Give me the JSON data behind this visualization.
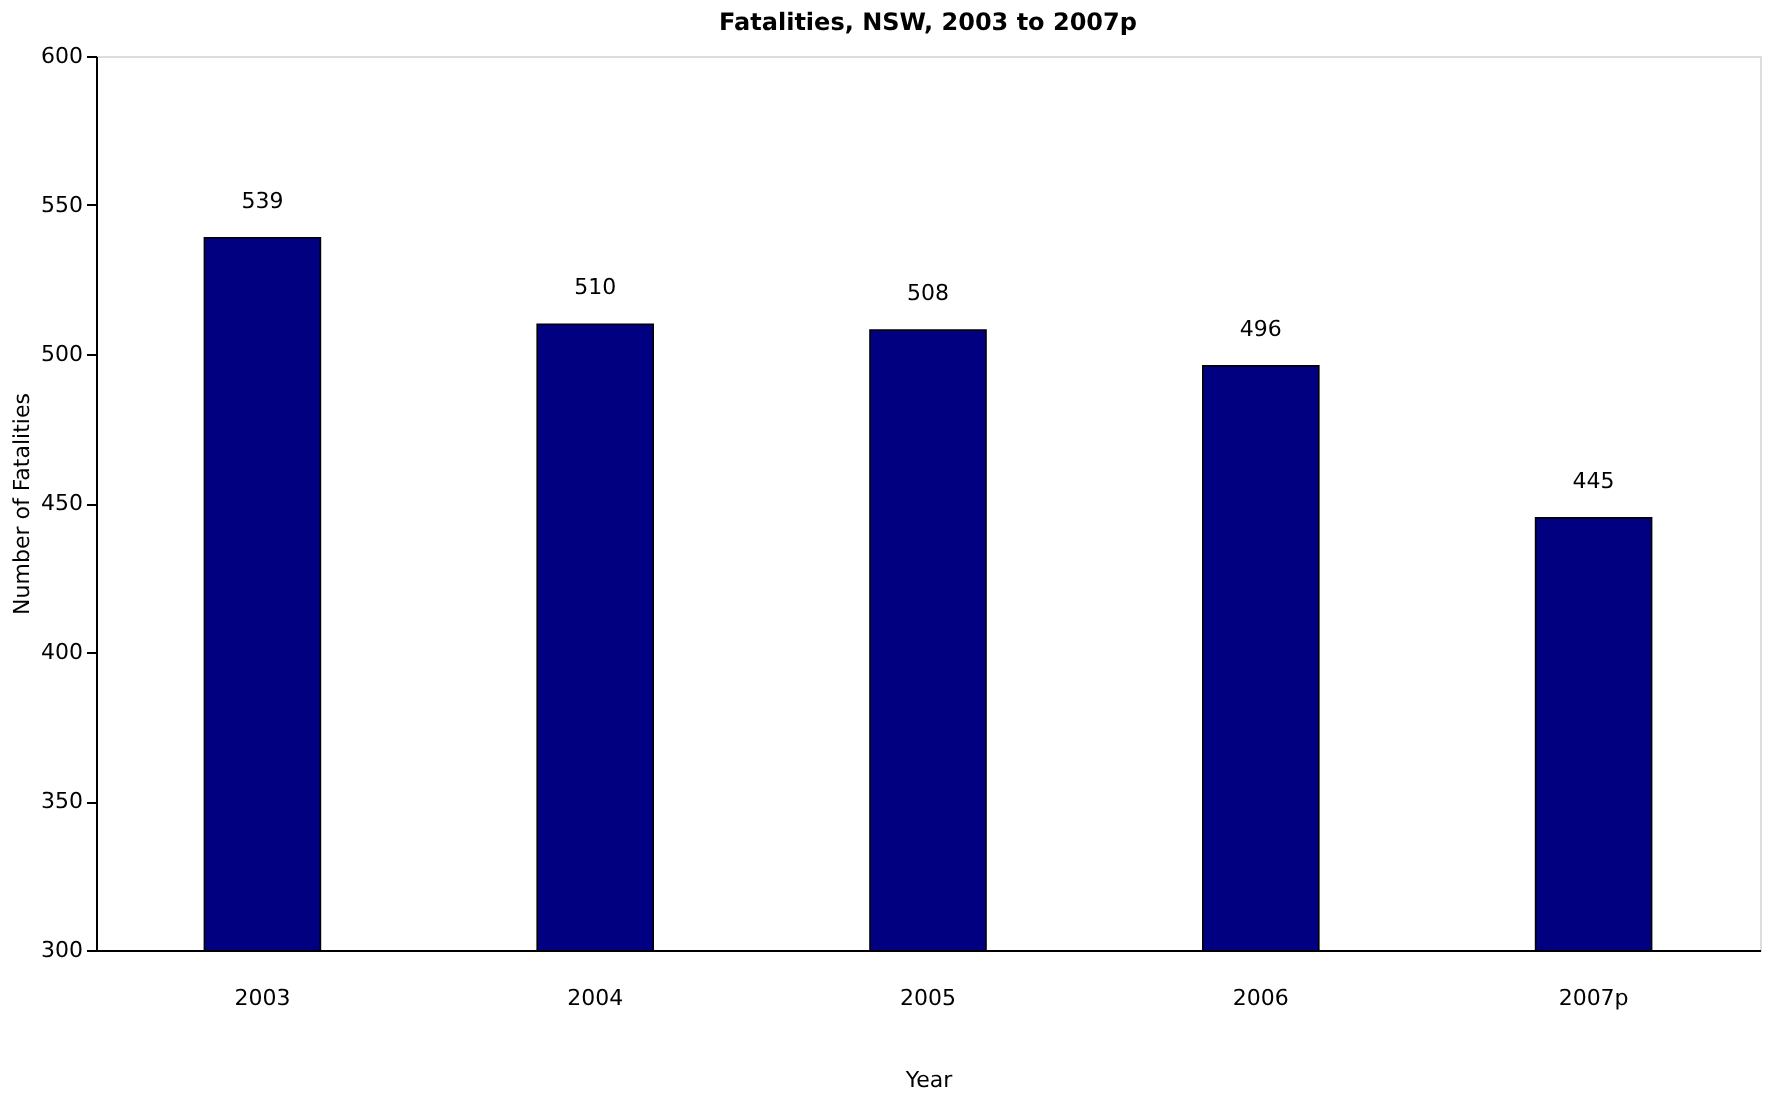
{
  "chart_data": {
    "type": "bar",
    "title": "Fatalities, NSW, 2003 to 2007p",
    "xlabel": "Year",
    "ylabel": "Number of Fatalities",
    "categories": [
      "2003",
      "2004",
      "2005",
      "2006",
      "2007p"
    ],
    "values": [
      539,
      510,
      508,
      496,
      445
    ],
    "color": "#000080",
    "ylim": [
      300,
      600
    ],
    "yticks": [
      300,
      350,
      400,
      450,
      500,
      550,
      600
    ],
    "data_labels": true,
    "grid": false
  }
}
